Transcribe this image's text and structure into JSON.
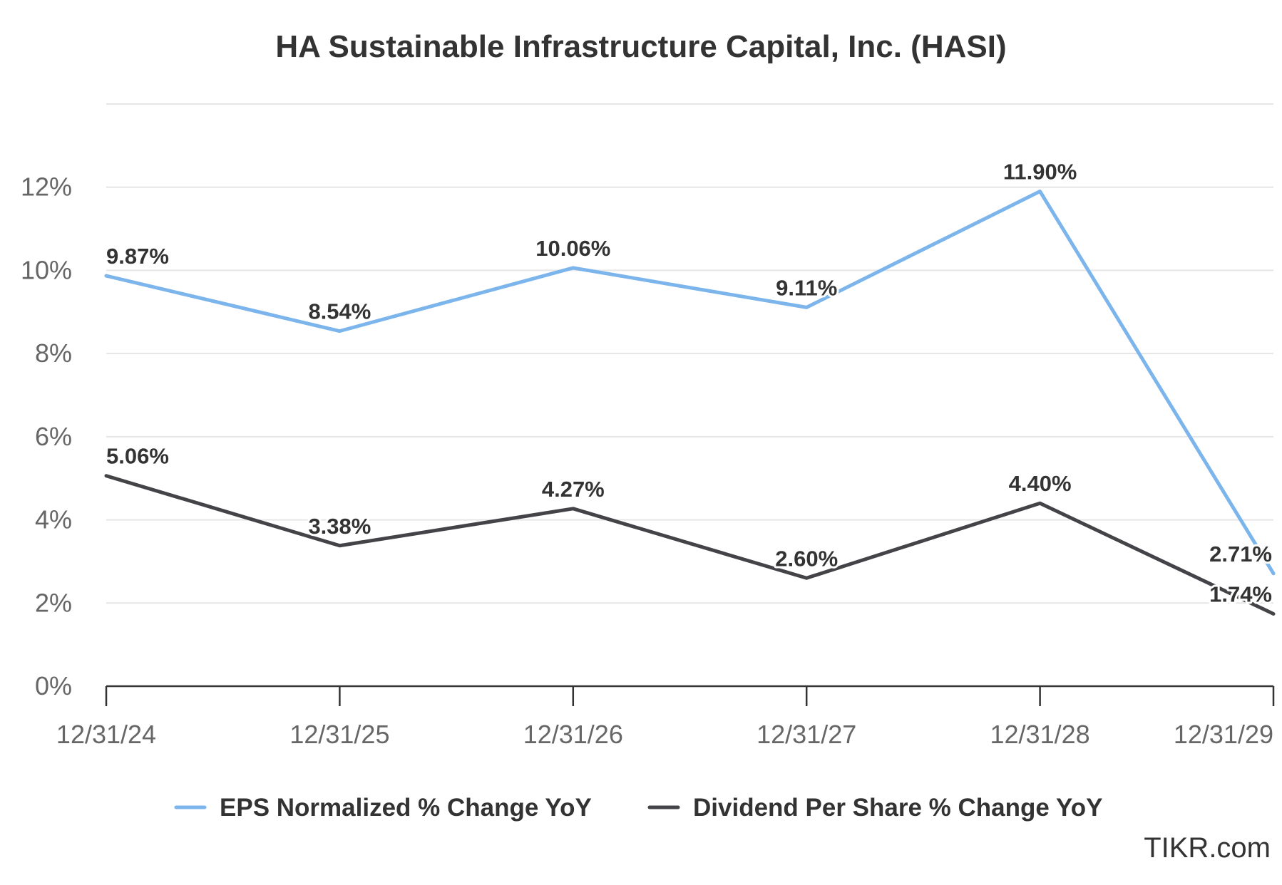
{
  "chart_data": {
    "type": "line",
    "title": "HA Sustainable Infrastructure Capital, Inc. (HASI)",
    "categories": [
      "12/31/24",
      "12/31/25",
      "12/31/26",
      "12/31/27",
      "12/31/28",
      "12/31/29"
    ],
    "series": [
      {
        "name": "EPS Normalized % Change YoY",
        "color": "#7cb5ec",
        "values": [
          9.87,
          8.54,
          10.06,
          9.11,
          11.9,
          2.71
        ],
        "labels": [
          "9.87%",
          "8.54%",
          "10.06%",
          "9.11%",
          "11.90%",
          "2.71%"
        ]
      },
      {
        "name": "Dividend Per Share % Change YoY",
        "color": "#434348",
        "values": [
          5.06,
          3.38,
          4.27,
          2.6,
          4.4,
          1.74
        ],
        "labels": [
          "5.06%",
          "3.38%",
          "4.27%",
          "2.60%",
          "4.40%",
          "1.74%"
        ]
      }
    ],
    "y_ticks": [
      0,
      2,
      4,
      6,
      8,
      10,
      12
    ],
    "y_tick_labels": [
      "0%",
      "2%",
      "4%",
      "6%",
      "8%",
      "10%",
      "12%"
    ],
    "ylim": [
      0,
      14
    ],
    "xlabel": "",
    "ylabel": "",
    "grid": true,
    "legend_position": "bottom-center"
  },
  "credit": "TIKR.com"
}
